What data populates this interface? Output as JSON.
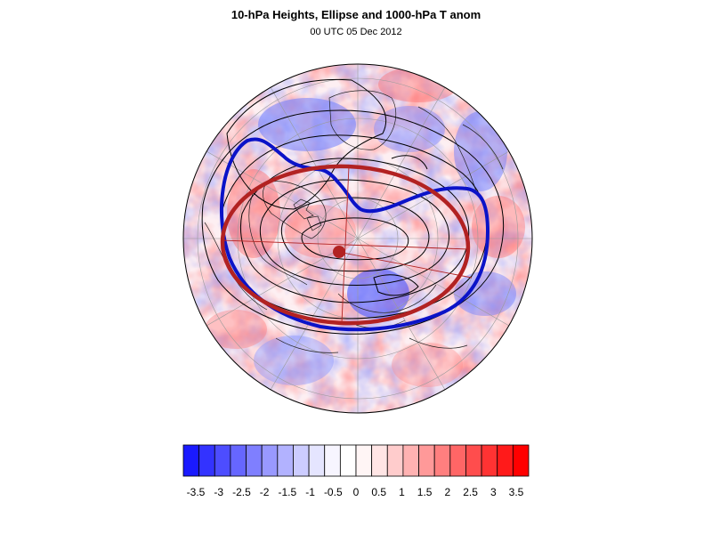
{
  "figure": {
    "title": "10-hPa Heights, Ellipse and 1000-hPa T anom",
    "subtitle": "00 UTC 05 Dec 2012"
  },
  "colors": {
    "contour": "#000000",
    "highlight_contour": "#0b13c8",
    "ellipse": "#b22222",
    "cold_max": "#1010ff",
    "warm_max": "#ff1010"
  },
  "colorbar": {
    "tick_labels": [
      "-3.5",
      "-3",
      "-2.5",
      "-2",
      "-1.5",
      "-1",
      "-0.5",
      "0",
      "0.5",
      "1",
      "1.5",
      "2",
      "2.5",
      "3",
      "3.5"
    ],
    "colors": [
      "#1a1aff",
      "#3333ff",
      "#4d4dff",
      "#6666ff",
      "#7f7fff",
      "#9999ff",
      "#b2b2ff",
      "#ccccff",
      "#e5e5ff",
      "#f7f5ff",
      "#ffffff",
      "#fff5f5",
      "#ffe5e5",
      "#ffcccc",
      "#ffb2b2",
      "#ff9999",
      "#ff7f7f",
      "#ff6666",
      "#ff4d4d",
      "#ff3333",
      "#ff1a1a",
      "#ff0000"
    ]
  }
}
